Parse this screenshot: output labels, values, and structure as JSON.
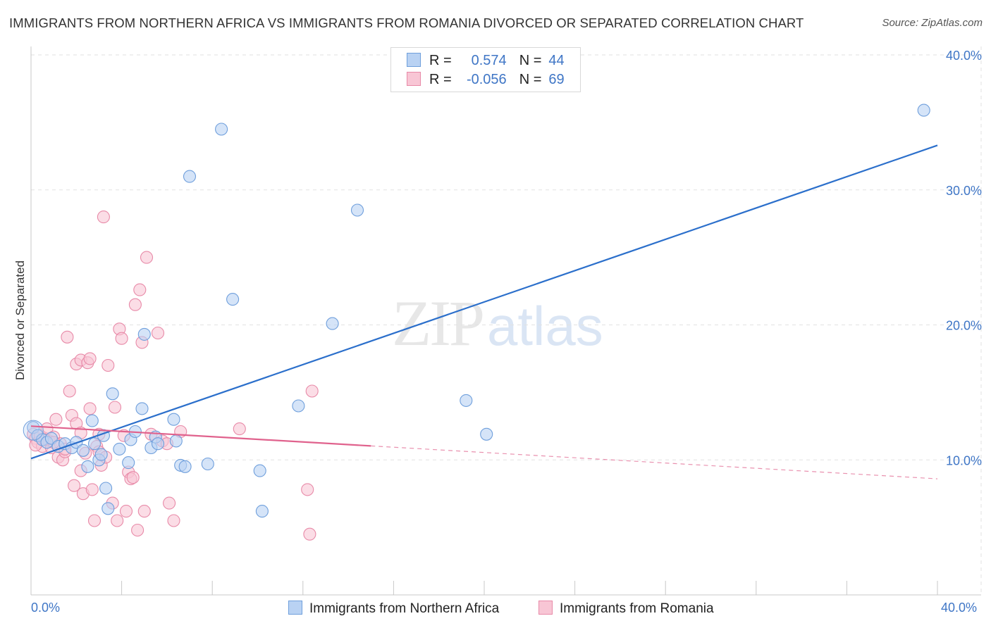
{
  "header": {
    "title": "IMMIGRANTS FROM NORTHERN AFRICA VS IMMIGRANTS FROM ROMANIA DIVORCED OR SEPARATED CORRELATION CHART",
    "source": "Source: ZipAtlas.com"
  },
  "watermark": {
    "zip": "ZIP",
    "atlas": "atlas"
  },
  "legend": {
    "rows": [
      {
        "r_label": "R =",
        "r_value": "0.574",
        "n_label": "N =",
        "n_value": "44"
      },
      {
        "r_label": "R =",
        "r_value": "-0.056",
        "n_label": "N =",
        "n_value": "69"
      }
    ]
  },
  "colors": {
    "blue_fill": "#b9d2f3",
    "blue_stroke": "#6f9fdc",
    "blue_line": "#2b6fcb",
    "pink_fill": "#f8c6d5",
    "pink_stroke": "#e88aa8",
    "pink_line": "#e0628d",
    "tick_text": "#3f76c6",
    "grid": "#e2e2e2"
  },
  "chart_data": {
    "type": "scatter",
    "title": "IMMIGRANTS FROM NORTHERN AFRICA VS IMMIGRANTS FROM ROMANIA DIVORCED OR SEPARATED CORRELATION CHART",
    "xlabel": "",
    "ylabel": "Divorced or Separated",
    "xlim": [
      0,
      40
    ],
    "ylim": [
      0,
      40
    ],
    "x_tick_labels": [
      "0.0%",
      "40.0%"
    ],
    "y_ticks": [
      10,
      20,
      30,
      40
    ],
    "y_tick_labels": [
      "10.0%",
      "20.0%",
      "30.0%",
      "40.0%"
    ],
    "grid": true,
    "legend_position": "top-center",
    "series": [
      {
        "name": "Immigrants from Northern Africa",
        "color": "#6f9fdc",
        "R": 0.574,
        "N": 44,
        "trend": {
          "x": [
            0,
            40
          ],
          "y": [
            10.1,
            33.3
          ],
          "dashed_from": null
        },
        "points": [
          [
            0.1,
            12.4
          ],
          [
            0.3,
            11.8
          ],
          [
            0.5,
            11.5
          ],
          [
            0.7,
            11.3
          ],
          [
            0.9,
            11.6
          ],
          [
            1.2,
            11.0
          ],
          [
            1.5,
            11.2
          ],
          [
            1.8,
            10.9
          ],
          [
            2.0,
            11.3
          ],
          [
            2.3,
            10.7
          ],
          [
            2.5,
            9.5
          ],
          [
            2.7,
            12.9
          ],
          [
            2.8,
            11.2
          ],
          [
            3.0,
            10.0
          ],
          [
            3.1,
            10.4
          ],
          [
            3.2,
            11.8
          ],
          [
            3.3,
            7.9
          ],
          [
            3.4,
            6.4
          ],
          [
            3.6,
            14.9
          ],
          [
            3.9,
            10.8
          ],
          [
            4.3,
            9.8
          ],
          [
            4.4,
            11.5
          ],
          [
            4.6,
            12.1
          ],
          [
            4.9,
            13.8
          ],
          [
            5.0,
            19.3
          ],
          [
            5.3,
            10.9
          ],
          [
            5.5,
            11.7
          ],
          [
            5.6,
            11.2
          ],
          [
            6.3,
            13.0
          ],
          [
            6.4,
            11.4
          ],
          [
            6.6,
            9.6
          ],
          [
            6.8,
            9.5
          ],
          [
            7.0,
            31.0
          ],
          [
            7.8,
            9.7
          ],
          [
            8.4,
            34.5
          ],
          [
            8.9,
            21.9
          ],
          [
            10.1,
            9.2
          ],
          [
            10.2,
            6.2
          ],
          [
            11.8,
            14.0
          ],
          [
            13.3,
            20.1
          ],
          [
            14.4,
            28.5
          ],
          [
            19.2,
            14.4
          ],
          [
            20.1,
            11.9
          ],
          [
            39.4,
            35.9
          ]
        ]
      },
      {
        "name": "Immigrants from Romania",
        "color": "#e88aa8",
        "R": -0.056,
        "N": 69,
        "trend": {
          "x": [
            0,
            40
          ],
          "y": [
            12.5,
            8.6
          ],
          "dashed_from": 15
        },
        "points": [
          [
            0.1,
            11.9
          ],
          [
            0.2,
            11.6
          ],
          [
            0.3,
            11.3
          ],
          [
            0.4,
            11.8
          ],
          [
            0.5,
            11.0
          ],
          [
            0.6,
            11.6
          ],
          [
            0.7,
            12.3
          ],
          [
            0.8,
            11.4
          ],
          [
            0.9,
            10.9
          ],
          [
            1.0,
            11.7
          ],
          [
            1.1,
            13.0
          ],
          [
            1.2,
            10.2
          ],
          [
            1.3,
            11.2
          ],
          [
            1.4,
            10.0
          ],
          [
            1.5,
            10.6
          ],
          [
            1.6,
            19.1
          ],
          [
            1.7,
            15.1
          ],
          [
            1.8,
            13.3
          ],
          [
            1.9,
            8.1
          ],
          [
            2.0,
            12.7
          ],
          [
            2.0,
            17.1
          ],
          [
            2.2,
            17.4
          ],
          [
            2.2,
            9.2
          ],
          [
            2.3,
            7.5
          ],
          [
            2.4,
            10.5
          ],
          [
            2.5,
            17.2
          ],
          [
            2.6,
            17.5
          ],
          [
            2.6,
            13.8
          ],
          [
            2.7,
            7.8
          ],
          [
            2.8,
            5.5
          ],
          [
            2.9,
            11.0
          ],
          [
            3.0,
            10.6
          ],
          [
            3.1,
            9.6
          ],
          [
            3.2,
            28.0
          ],
          [
            3.3,
            10.2
          ],
          [
            3.4,
            17.0
          ],
          [
            3.6,
            6.8
          ],
          [
            3.7,
            13.9
          ],
          [
            3.8,
            5.5
          ],
          [
            3.9,
            19.7
          ],
          [
            4.0,
            19.0
          ],
          [
            4.1,
            11.8
          ],
          [
            4.2,
            6.2
          ],
          [
            4.3,
            9.1
          ],
          [
            4.4,
            8.6
          ],
          [
            4.5,
            8.7
          ],
          [
            4.6,
            21.5
          ],
          [
            4.7,
            4.8
          ],
          [
            4.8,
            22.6
          ],
          [
            4.9,
            18.7
          ],
          [
            5.0,
            6.2
          ],
          [
            5.1,
            25.0
          ],
          [
            5.3,
            11.9
          ],
          [
            5.6,
            19.4
          ],
          [
            5.8,
            11.4
          ],
          [
            6.0,
            11.2
          ],
          [
            6.1,
            6.8
          ],
          [
            6.3,
            5.5
          ],
          [
            6.6,
            12.1
          ],
          [
            9.2,
            12.3
          ],
          [
            12.4,
            15.1
          ],
          [
            12.3,
            4.5
          ],
          [
            12.2,
            7.8
          ],
          [
            0.2,
            11.1
          ],
          [
            0.6,
            11.5
          ],
          [
            1.0,
            11.3
          ],
          [
            1.5,
            10.8
          ],
          [
            2.2,
            12.0
          ],
          [
            3.0,
            11.9
          ]
        ]
      }
    ]
  },
  "bottom_legend": {
    "items": [
      {
        "label": "Immigrants from Northern Africa"
      },
      {
        "label": "Immigrants from Romania"
      }
    ]
  }
}
